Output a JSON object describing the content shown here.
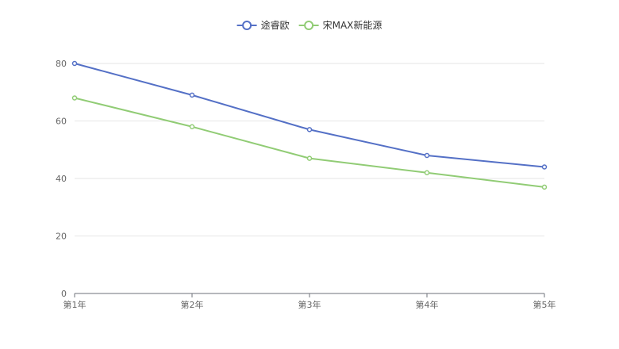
{
  "chart_data": {
    "type": "line",
    "title": "",
    "xlabel": "",
    "ylabel": "",
    "categories": [
      "第1年",
      "第2年",
      "第3年",
      "第4年",
      "第5年"
    ],
    "ylim": [
      0,
      80
    ],
    "yticks": [
      0,
      20,
      40,
      60,
      80
    ],
    "grid": true,
    "legend_position": "top-center",
    "series": [
      {
        "name": "途睿欧",
        "color": "#5470c6",
        "values": [
          80,
          69,
          57,
          48,
          44
        ]
      },
      {
        "name": "宋MAX新能源",
        "color": "#91cc75",
        "values": [
          68,
          58,
          47,
          42,
          37
        ]
      }
    ]
  }
}
